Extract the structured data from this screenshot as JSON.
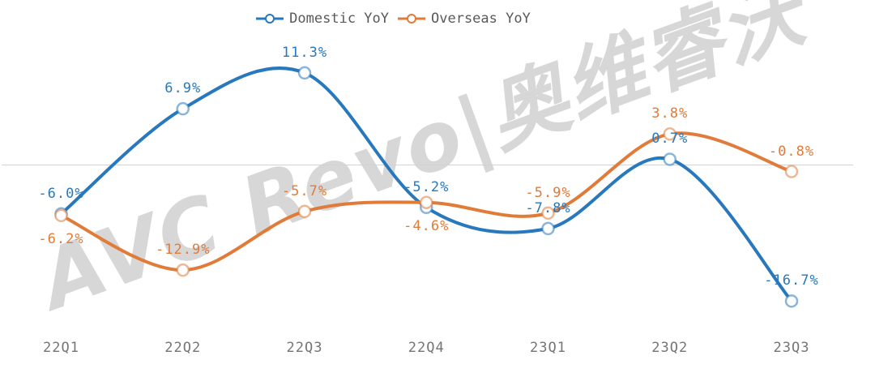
{
  "watermark": {
    "text": "AVC Revo|奥维睿沃"
  },
  "legend": {
    "items": [
      {
        "label": "Domestic YoY",
        "color": "#2878BD"
      },
      {
        "label": "Overseas YoY",
        "color": "#E07B3A"
      }
    ]
  },
  "colors": {
    "domestic": "#2878BD",
    "overseas": "#E07B3A",
    "axis_label": "#757575",
    "legend_text": "#595959",
    "gridline": "#D2D2D2",
    "watermark": "#D7D7D7",
    "background": "#FFFFFF"
  },
  "chart_data": {
    "type": "line",
    "smooth": true,
    "title": "",
    "xlabel": "",
    "ylabel": "",
    "y_axis_visible": false,
    "grid": "zero-line-only",
    "legend_position": "top-center",
    "categories": [
      "22Q1",
      "22Q2",
      "22Q3",
      "22Q4",
      "23Q1",
      "23Q2",
      "23Q3"
    ],
    "series": [
      {
        "name": "Domestic YoY",
        "color": "#2878BD",
        "values": [
          -6.0,
          6.9,
          11.3,
          -5.2,
          -7.8,
          0.7,
          -16.7
        ],
        "labels": [
          "-6.0%",
          "6.9%",
          "11.3%",
          "-5.2%",
          "-7.8%",
          "0.7%",
          "-16.7%"
        ],
        "label_pos": [
          "above",
          "above",
          "above",
          "above",
          "above",
          "above",
          "above"
        ]
      },
      {
        "name": "Overseas YoY",
        "color": "#E07B3A",
        "values": [
          -6.2,
          -12.9,
          -5.7,
          -4.6,
          -5.9,
          3.8,
          -0.8
        ],
        "labels": [
          "-6.2%",
          "-12.9%",
          "-5.7%",
          "-4.6%",
          "-5.9%",
          "3.8%",
          "-0.8%"
        ],
        "label_pos": [
          "below",
          "above",
          "above",
          "below",
          "above",
          "above",
          "above"
        ]
      }
    ]
  }
}
